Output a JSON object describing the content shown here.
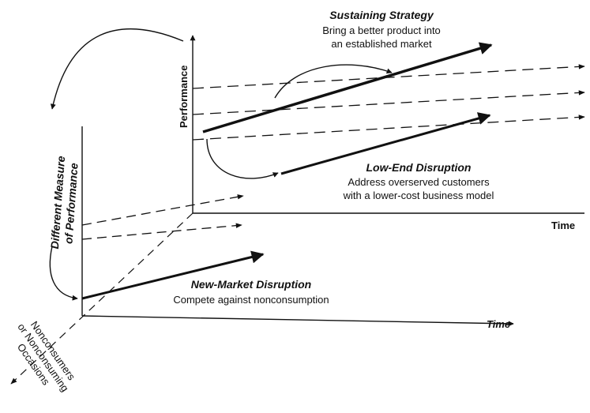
{
  "back_plane": {
    "y_axis_label": "Performance",
    "x_axis_label": "Time"
  },
  "front_plane": {
    "x_axis_label": "Time",
    "y_axis_label_line1": "Different Measure",
    "y_axis_label_line2": "of Performance"
  },
  "depth_axis": {
    "label_line1": "Nonconsumers",
    "label_line2": "or Nonconsuming",
    "label_line3": "Occasions"
  },
  "sustaining": {
    "title": "Sustaining Strategy",
    "line1": "Bring a better product into",
    "line2": "an established market"
  },
  "low_end": {
    "title": "Low-End Disruption",
    "line1": "Address overserved customers",
    "line2": "with a lower-cost business model"
  },
  "new_market": {
    "title": "New-Market Disruption",
    "line1": "Compete against nonconsumption"
  }
}
